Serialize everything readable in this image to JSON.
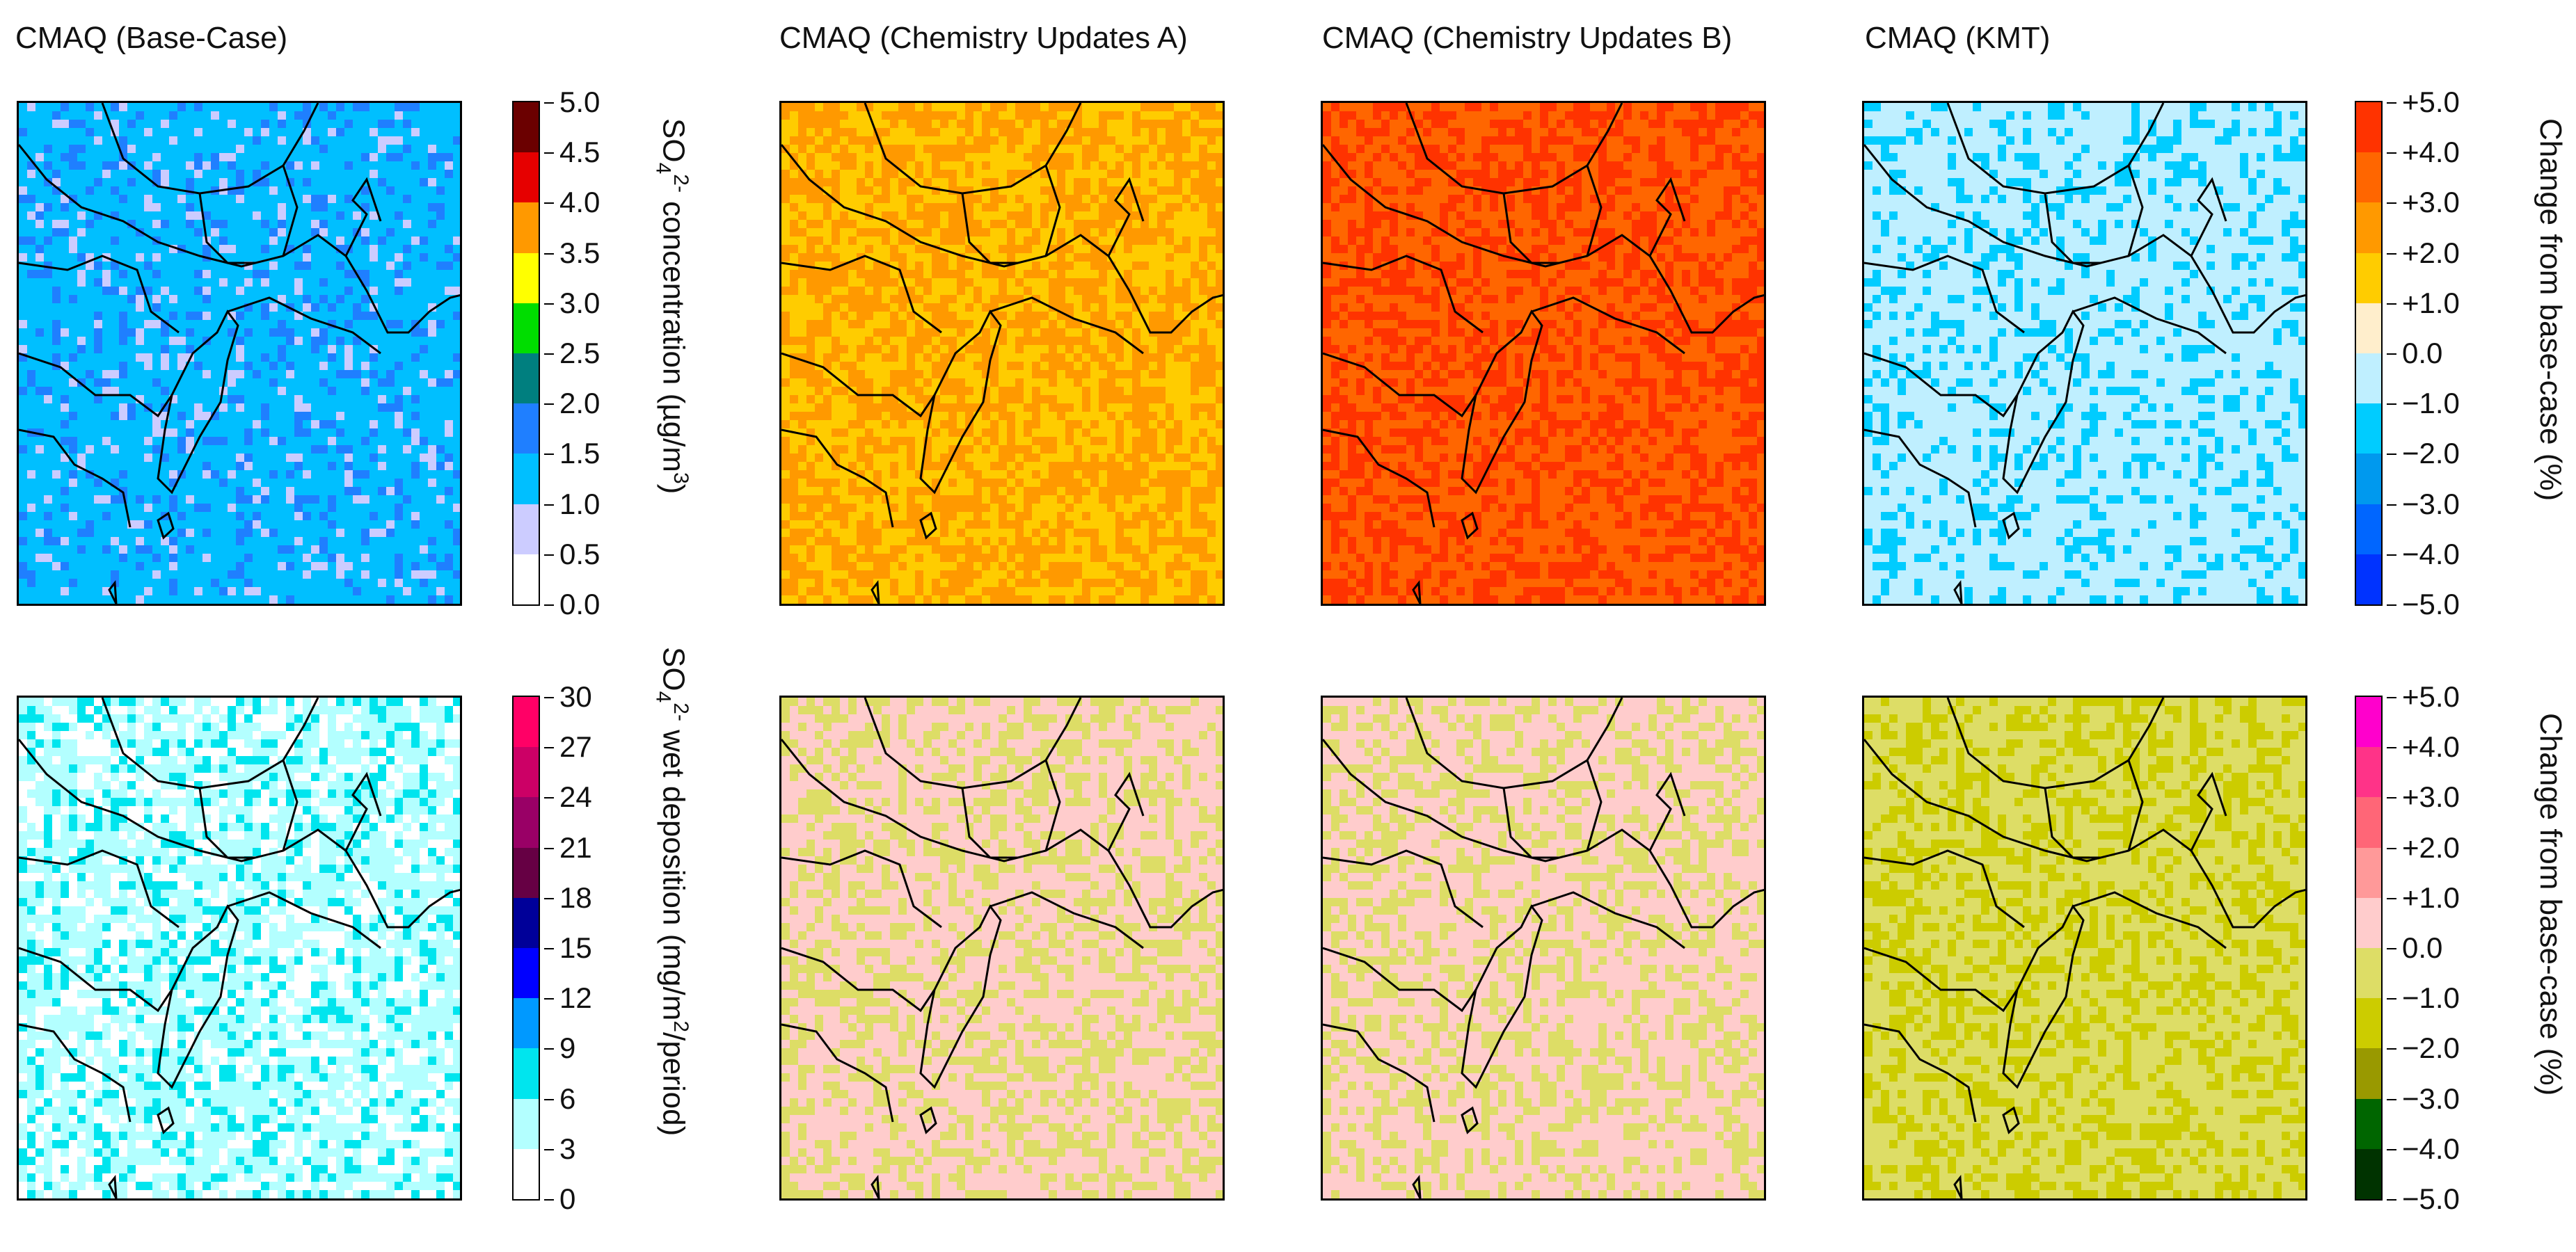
{
  "chart_data": [
    {
      "type": "heatmap",
      "row": 1,
      "panels": [
        "CMAQ (Base-Case)"
      ],
      "colorbar": {
        "label_parts": [
          "SO",
          "4",
          "2-",
          " concentration (µg/m",
          "3",
          ")"
        ],
        "ticks": [
          "5.0",
          "4.5",
          "4.0",
          "3.5",
          "3.0",
          "2.5",
          "2.0",
          "1.5",
          "1.0",
          "0.5",
          "0.0"
        ],
        "colors": [
          "#6b0000",
          "#e60000",
          "#ff9900",
          "#ffff00",
          "#00dd00",
          "#007f7f",
          "#1f7fff",
          "#00bfff",
          "#ccccff",
          "#ffffff"
        ]
      },
      "dominant_colors": {
        "CMAQ (Base-Case)": [
          "#00bfff",
          "#1f7fff",
          "#ccccff"
        ]
      }
    },
    {
      "type": "heatmap",
      "row": 1,
      "panels": [
        "CMAQ (Chemistry Updates A)",
        "CMAQ (Chemistry Updates B)",
        "CMAQ (KMT)"
      ],
      "colorbar": {
        "label": "Change from base-case (%)",
        "ticks": [
          "+5.0",
          "+4.0",
          "+3.0",
          "+2.0",
          "+1.0",
          "0.0",
          "−1.0",
          "−2.0",
          "−3.0",
          "−4.0",
          "−5.0"
        ],
        "colors": [
          "#ff3300",
          "#ff6600",
          "#ff9900",
          "#ffcc00",
          "#ffeecc",
          "#bfefff",
          "#00ccff",
          "#0099ee",
          "#0066ff",
          "#0033ff"
        ]
      },
      "dominant_colors": {
        "CMAQ (Chemistry Updates A)": [
          "#ff9900",
          "#ffcc00"
        ],
        "CMAQ (Chemistry Updates B)": [
          "#ff6600",
          "#ff3300"
        ],
        "CMAQ (KMT)": [
          "#bfefff",
          "#00ccff"
        ]
      }
    },
    {
      "type": "heatmap",
      "row": 2,
      "panels": [
        "CMAQ (Base-Case)"
      ],
      "colorbar": {
        "label_parts": [
          "SO",
          "4",
          "2-",
          " wet deposition (mg/m",
          "2",
          "/period)"
        ],
        "ticks": [
          "30",
          "27",
          "24",
          "21",
          "18",
          "15",
          "12",
          "9",
          "6",
          "3",
          "0"
        ],
        "colors": [
          "#ff0066",
          "#cc0066",
          "#990066",
          "#660044",
          "#000099",
          "#0000ff",
          "#0099ff",
          "#00e5ee",
          "#b3ffff",
          "#ffffff"
        ]
      },
      "dominant_colors": {
        "CMAQ (Base-Case)": [
          "#b3ffff",
          "#ffffff",
          "#00e5ee"
        ]
      }
    },
    {
      "type": "heatmap",
      "row": 2,
      "panels": [
        "CMAQ (Chemistry Updates A)",
        "CMAQ (Chemistry Updates B)",
        "CMAQ (KMT)"
      ],
      "colorbar": {
        "label": "Change from base-case (%)",
        "ticks": [
          "+5.0",
          "+4.0",
          "+3.0",
          "+2.0",
          "+1.0",
          "0.0",
          "−1.0",
          "−2.0",
          "−3.0",
          "−4.0",
          "−5.0"
        ],
        "colors": [
          "#ff00cc",
          "#ff3388",
          "#ff6677",
          "#ff9999",
          "#ffcccc",
          "#dddd66",
          "#cccc00",
          "#999900",
          "#006600",
          "#003300"
        ]
      },
      "dominant_colors": {
        "CMAQ (Chemistry Updates A)": [
          "#ffcccc",
          "#dddd66"
        ],
        "CMAQ (Chemistry Updates B)": [
          "#ffcccc",
          "#dddd66"
        ],
        "CMAQ (KMT)": [
          "#dddd66",
          "#cccc00"
        ]
      }
    }
  ],
  "titles": [
    "CMAQ (Base-Case)",
    "CMAQ (Chemistry Updates A)",
    "CMAQ (Chemistry Updates B)",
    "CMAQ (KMT)"
  ]
}
